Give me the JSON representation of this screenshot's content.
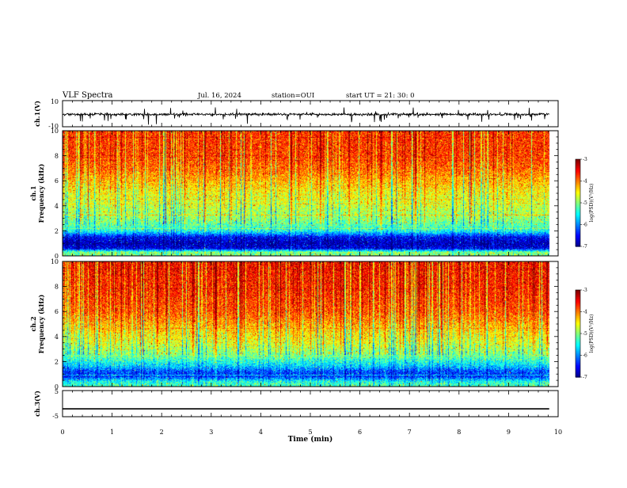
{
  "header": {
    "title": "VLF Spectra",
    "date": "Jul. 16, 2024",
    "station": "station=OUI",
    "start": "start UT =  21: 30: 0"
  },
  "chart_data": [
    {
      "panel": "ch1-waveform",
      "type": "line",
      "ylabel": "ch.1(V)",
      "ylim": [
        -10,
        10
      ],
      "y_ticks": [
        "10",
        "-10"
      ],
      "xlim": [
        0,
        10
      ],
      "x_extent": [
        0,
        9.82
      ],
      "series": [
        {
          "baseline": -0.5,
          "noise": "impulsive spikes (sferics)"
        }
      ]
    },
    {
      "panel": "ch1-spectrogram",
      "type": "heatmap",
      "ylabel": "ch.1 Frequency (kHz)",
      "ylim": [
        0,
        10
      ],
      "y_ticks": [
        "0",
        "2",
        "4",
        "6",
        "8",
        "10"
      ],
      "xlim": [
        0,
        10
      ],
      "x_extent": [
        0,
        9.82
      ],
      "colorbar": {
        "label": "log(PSD)(V²/Hz)",
        "range": [
          -7,
          -3
        ],
        "ticks": [
          "-3",
          "-4",
          "-5",
          "-6",
          "-7"
        ]
      },
      "profile": [
        [
          0,
          -5.0
        ],
        [
          0.3,
          -5.0
        ],
        [
          0.6,
          -6.6
        ],
        [
          1.0,
          -6.8
        ],
        [
          1.5,
          -6.5
        ],
        [
          2.0,
          -5.4
        ],
        [
          3.0,
          -4.9
        ],
        [
          4.0,
          -4.7
        ],
        [
          5.0,
          -4.5
        ],
        [
          6.0,
          -4.2
        ],
        [
          7.0,
          -3.9
        ],
        [
          8.5,
          -3.7
        ],
        [
          10.0,
          -3.7
        ]
      ]
    },
    {
      "panel": "ch2-spectrogram",
      "type": "heatmap",
      "ylabel": "ch.2 Frequency (kHz)",
      "ylim": [
        0,
        10
      ],
      "y_ticks": [
        "0",
        "2",
        "4",
        "6",
        "8",
        "10"
      ],
      "xlim": [
        0,
        10
      ],
      "x_extent": [
        0,
        9.82
      ],
      "colorbar": {
        "label": "log(PSD)(V²/Hz)",
        "range": [
          -7,
          -3
        ],
        "ticks": [
          "-3",
          "-4",
          "-5",
          "-6",
          "-7"
        ]
      },
      "profile": [
        [
          0,
          -5.2
        ],
        [
          0.4,
          -5.4
        ],
        [
          0.8,
          -6.3
        ],
        [
          1.2,
          -6.2
        ],
        [
          1.6,
          -5.7
        ],
        [
          2.5,
          -5.0
        ],
        [
          3.5,
          -4.6
        ],
        [
          4.5,
          -4.3
        ],
        [
          6.0,
          -3.8
        ],
        [
          8.0,
          -3.6
        ],
        [
          10.0,
          -3.5
        ]
      ]
    },
    {
      "panel": "ch3-waveform",
      "type": "line",
      "ylabel": "ch.3(V)",
      "ylim": [
        -5,
        5
      ],
      "y_ticks": [
        "5",
        "-5"
      ],
      "xlim": [
        0,
        10
      ],
      "x_extent": [
        0,
        9.82
      ],
      "series": [
        {
          "value": -2.0
        }
      ]
    }
  ],
  "time_axis": {
    "label": "Time (min)",
    "ticks": [
      "0",
      "1",
      "2",
      "3",
      "4",
      "5",
      "6",
      "7",
      "8",
      "9",
      "10"
    ]
  }
}
